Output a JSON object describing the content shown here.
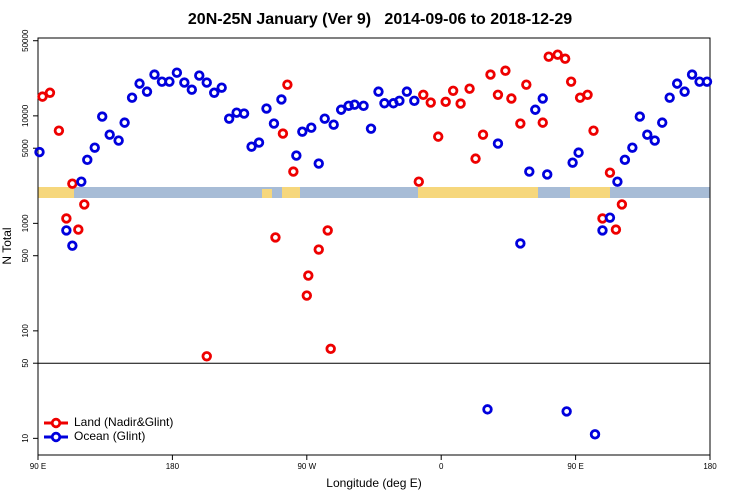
{
  "chart_data": {
    "type": "scatter",
    "title": "20N-25N January (Ver 9)   2014-09-06 to 2018-12-29",
    "xlabel": "Longitude (deg E)",
    "ylabel": "N Total",
    "xlim": [
      90,
      540
    ],
    "xticks": [
      {
        "value": 90,
        "label": "90 E"
      },
      {
        "value": 180,
        "label": "180"
      },
      {
        "value": 270,
        "label": "90 W"
      },
      {
        "value": 360,
        "label": "0"
      },
      {
        "value": 450,
        "label": "90 E"
      },
      {
        "value": 540,
        "label": "180"
      }
    ],
    "ylim": [
      7,
      53000
    ],
    "yscale": "log",
    "yticks": [
      10,
      50,
      100,
      500,
      1000,
      5000,
      10000,
      50000
    ],
    "hline": 50,
    "legend": "lower left",
    "series": [
      {
        "name": "Land (Nadir&Glint)",
        "color": "#ee0000",
        "x": [
          93,
          98,
          104,
          109,
          113,
          117,
          121,
          203,
          249,
          254,
          257,
          261,
          270,
          271,
          278,
          284,
          286,
          345,
          348,
          353,
          358,
          363,
          368,
          373,
          379,
          383,
          388,
          393,
          398,
          403,
          407,
          413,
          417,
          428,
          432,
          438,
          443,
          447,
          453,
          458,
          462,
          468,
          473,
          477,
          481
        ],
        "values": [
          15100,
          16400,
          7280,
          1110,
          2340,
          875,
          1500,
          58,
          740,
          6840,
          19500,
          3030,
          213,
          327,
          571,
          860,
          68,
          2440,
          15700,
          13300,
          6410,
          13500,
          17100,
          13000,
          17900,
          4000,
          6680,
          24200,
          15700,
          26300,
          14500,
          8480,
          19500,
          8650,
          35500,
          37100,
          34000,
          20800,
          14760,
          15700,
          7280,
          1110,
          2960,
          875,
          1500
        ]
      },
      {
        "name": "Ocean (Glint)",
        "color": "#0000dd",
        "x": [
          91,
          109,
          113,
          119,
          123,
          128,
          133,
          138,
          144,
          148,
          153,
          158,
          163,
          168,
          173,
          178,
          183,
          188,
          193,
          198,
          203,
          208,
          213,
          218,
          223,
          228,
          233,
          238,
          243,
          248,
          253,
          263,
          267,
          273,
          278,
          282,
          288,
          293,
          298,
          302,
          308,
          313,
          318,
          322,
          328,
          332,
          337,
          342,
          391,
          398,
          413,
          419,
          423,
          428,
          431,
          444,
          448,
          452,
          463,
          468,
          473,
          478,
          483,
          488,
          493,
          498,
          503,
          508,
          513,
          518,
          523,
          528,
          533,
          538
        ],
        "values": [
          4600,
          860,
          620,
          2440,
          3900,
          5060,
          9840,
          6680,
          5890,
          8650,
          14760,
          19950,
          16800,
          24200,
          20800,
          20800,
          25200,
          20400,
          17500,
          23700,
          20400,
          16400,
          18300,
          9420,
          10700,
          10500,
          5170,
          5640,
          11700,
          8480,
          14200,
          4270,
          7130,
          7760,
          3600,
          9420,
          8280,
          11400,
          12400,
          12700,
          12400,
          7600,
          16800,
          13100,
          13100,
          13800,
          16800,
          13800,
          18.6,
          5520,
          650,
          3030,
          11400,
          14500,
          2850,
          17.8,
          3670,
          4550,
          10.9,
          860,
          1130,
          2440,
          3900,
          5060,
          9840,
          6680,
          5890,
          8650,
          14760,
          19950,
          16800,
          24200,
          20800,
          20800
        ]
      }
    ]
  }
}
